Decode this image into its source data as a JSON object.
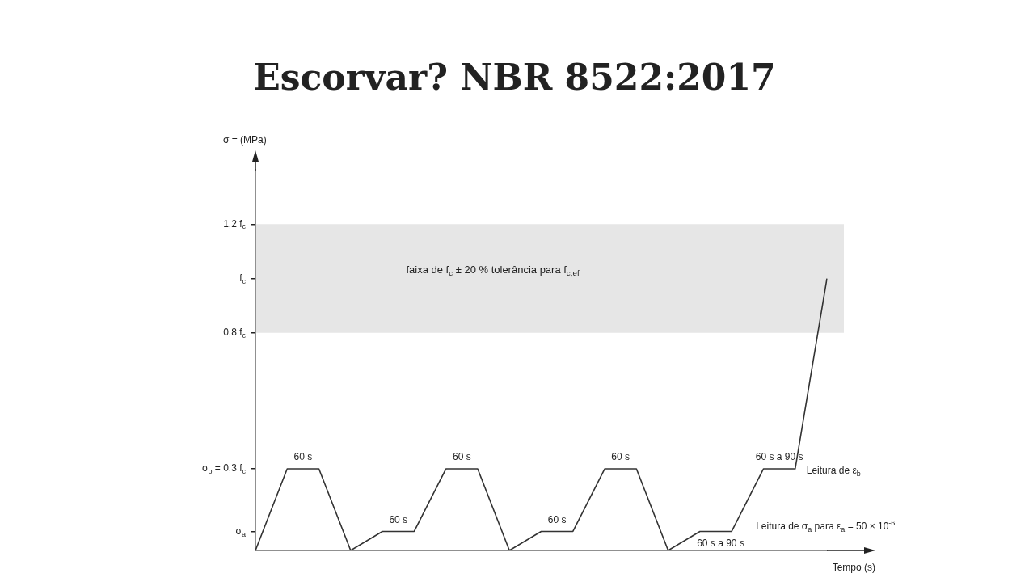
{
  "chart_data": {
    "type": "line",
    "title": "Escorvar? NBR 8522:2017",
    "xlabel": "Tempo (s)",
    "ylabel": "σ = (MPa)",
    "categories": [
      null,
      null,
      null,
      null,
      null,
      null,
      null,
      null,
      null,
      null,
      null,
      null,
      null,
      null,
      null,
      null,
      null,
      null,
      null
    ],
    "series": [
      {
        "color": "#333333",
        "values": [
          0,
          0.3,
          0.3,
          0,
          0.07,
          0.07,
          0.3,
          0.3,
          0,
          0.07,
          0.07,
          0.3,
          0.3,
          0,
          0.07,
          0.07,
          0.3,
          0.3,
          1.0
        ]
      }
    ],
    "ylim": [
      0,
      1.4
    ],
    "yticks": [
      {
        "value": 0.07,
        "label": "σ$_{a}$"
      },
      {
        "value": 0.3,
        "label": "σ$_{b}$ = 0,3 f$_{c}$"
      },
      {
        "value": 0.8,
        "label": "0,8 f$_{c}$"
      },
      {
        "value": 1.0,
        "label": "f$_{c}$"
      },
      {
        "value": 1.2,
        "label": "1,2 f$_{c}$"
      }
    ],
    "tick_labels": "y",
    "bands": [
      {
        "axis": "y",
        "from": 0.8,
        "to": 1.2,
        "label": "faixa de f$_{c}$ ± 20 % tolerância para f$_{c,ef}$",
        "color": "#e6e6e6"
      }
    ],
    "annotations": [
      "60 s",
      "60 s",
      "60 s",
      "60 s",
      "60 s",
      "60 s a 90 s",
      "60 s a 90 s",
      "Leitura de ε$_{b}$",
      "Leitura de σ$_{a}$ para ε$_{a}$ = 50 × 10$^{-6}$"
    ]
  }
}
